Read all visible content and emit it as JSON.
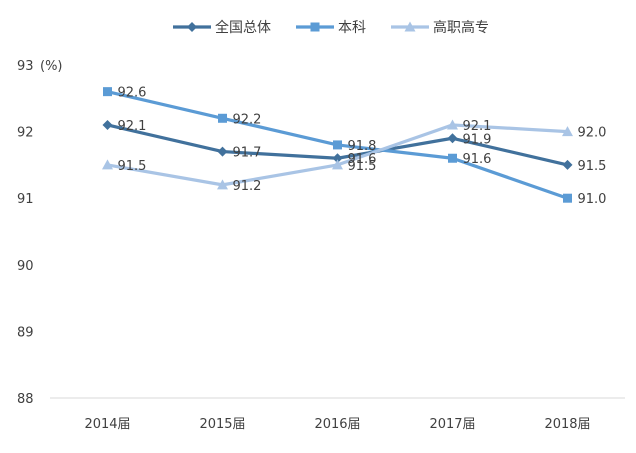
{
  "chart_data": {
    "type": "line",
    "categories": [
      "2014届",
      "2015届",
      "2016届",
      "2017届",
      "2018届"
    ],
    "series": [
      {
        "name": "全国总体",
        "values": [
          92.1,
          91.7,
          91.6,
          91.9,
          91.5
        ],
        "labels": [
          "92.1",
          "91.7",
          "91.6",
          "91.9",
          "91.5"
        ],
        "color": "#41719c",
        "marker": "diamond"
      },
      {
        "name": "本科",
        "values": [
          92.6,
          92.2,
          91.8,
          91.6,
          91.0
        ],
        "labels": [
          "92.6",
          "92.2",
          "91.8",
          "91.6",
          "91.0"
        ],
        "color": "#5b9bd5",
        "marker": "square"
      },
      {
        "name": "高职高专",
        "values": [
          91.5,
          91.2,
          91.5,
          92.1,
          92.0
        ],
        "labels": [
          "91.5",
          "91.2",
          "91.5",
          "92.1",
          "92.0"
        ],
        "color": "#a9c4e5",
        "marker": "triangle"
      }
    ],
    "y_unit": "(%)",
    "ylim": [
      88,
      93
    ],
    "yticks": [
      88,
      89,
      90,
      91,
      92,
      93
    ],
    "grid": false,
    "legend": "top-center"
  }
}
